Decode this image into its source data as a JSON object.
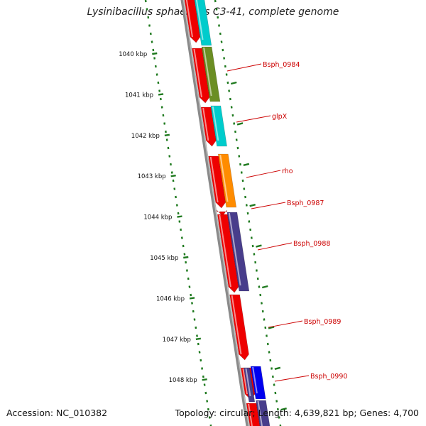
{
  "title": "Lysinibacillus sphaericus C3-41, complete genome",
  "footer": {
    "accession": "Accession: NC_010382",
    "summary": "Topology: circular; Length: 4,639,821 bp; Genes: 4,700"
  },
  "colors": {
    "backbone": "#8a8a8a",
    "ticks": "#1f7a1f",
    "label": "#cc0000",
    "cds": "#ee0000"
  },
  "kbp_ticks": [
    {
      "label": "1040 kbp"
    },
    {
      "label": "1041 kbp"
    },
    {
      "label": "1042 kbp"
    },
    {
      "label": "1043 kbp"
    },
    {
      "label": "1044 kbp"
    },
    {
      "label": "1045 kbp"
    },
    {
      "label": "1046 kbp"
    },
    {
      "label": "1047 kbp"
    },
    {
      "label": "1048 kbp"
    }
  ],
  "genes": [
    {
      "name": "Bsph_0984",
      "color": "#6b8e23"
    },
    {
      "name": "glpX",
      "color": "#00cccc"
    },
    {
      "name": "rho",
      "color": "#ff8c00"
    },
    {
      "name": "Bsph_0987",
      "color": "#ee0000"
    },
    {
      "name": "Bsph_0988",
      "color": "#483d8b"
    },
    {
      "name": "Bsph_0989",
      "color": "#ee0000"
    },
    {
      "name": "Bsph_0990",
      "color": "#0000ee"
    }
  ]
}
